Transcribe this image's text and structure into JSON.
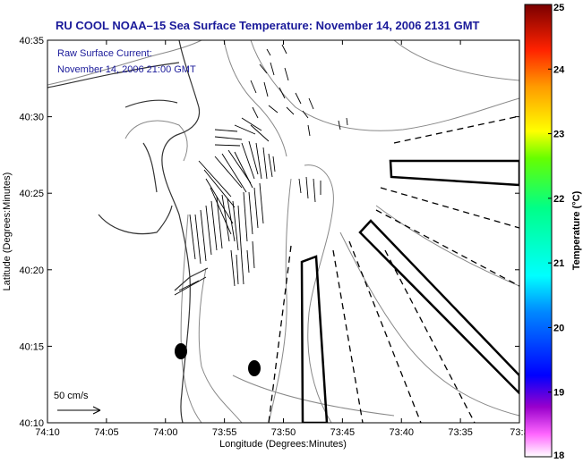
{
  "title": "RU COOL  NOAA–15  Sea Surface Temperature:  November 14, 2006 2131 GMT",
  "current_label": "Raw Surface Current:",
  "current_time": "November 14, 2006 21:00 GMT",
  "scale_label": "50 cm/s",
  "xlabel": "Longitude (Degrees:Minutes)",
  "ylabel": "Latitude (Degrees:Minutes)",
  "x_ticks": [
    "74:10",
    "74:05",
    "74:00",
    "73:55",
    "73:50",
    "73:45",
    "73:40",
    "73:35",
    "73:3"
  ],
  "y_ticks": [
    "40:35",
    "40:30",
    "40:25",
    "40:20",
    "40:15",
    "40:10"
  ],
  "colorbar": {
    "label": "Temperature (°C)",
    "min": 18,
    "max": 25,
    "ticks": [
      "25",
      "24",
      "23",
      "22",
      "21",
      "20",
      "19",
      "18"
    ]
  },
  "colors": {
    "title": "#1a1a9a",
    "frame": "#000000",
    "contour": "#888888"
  }
}
